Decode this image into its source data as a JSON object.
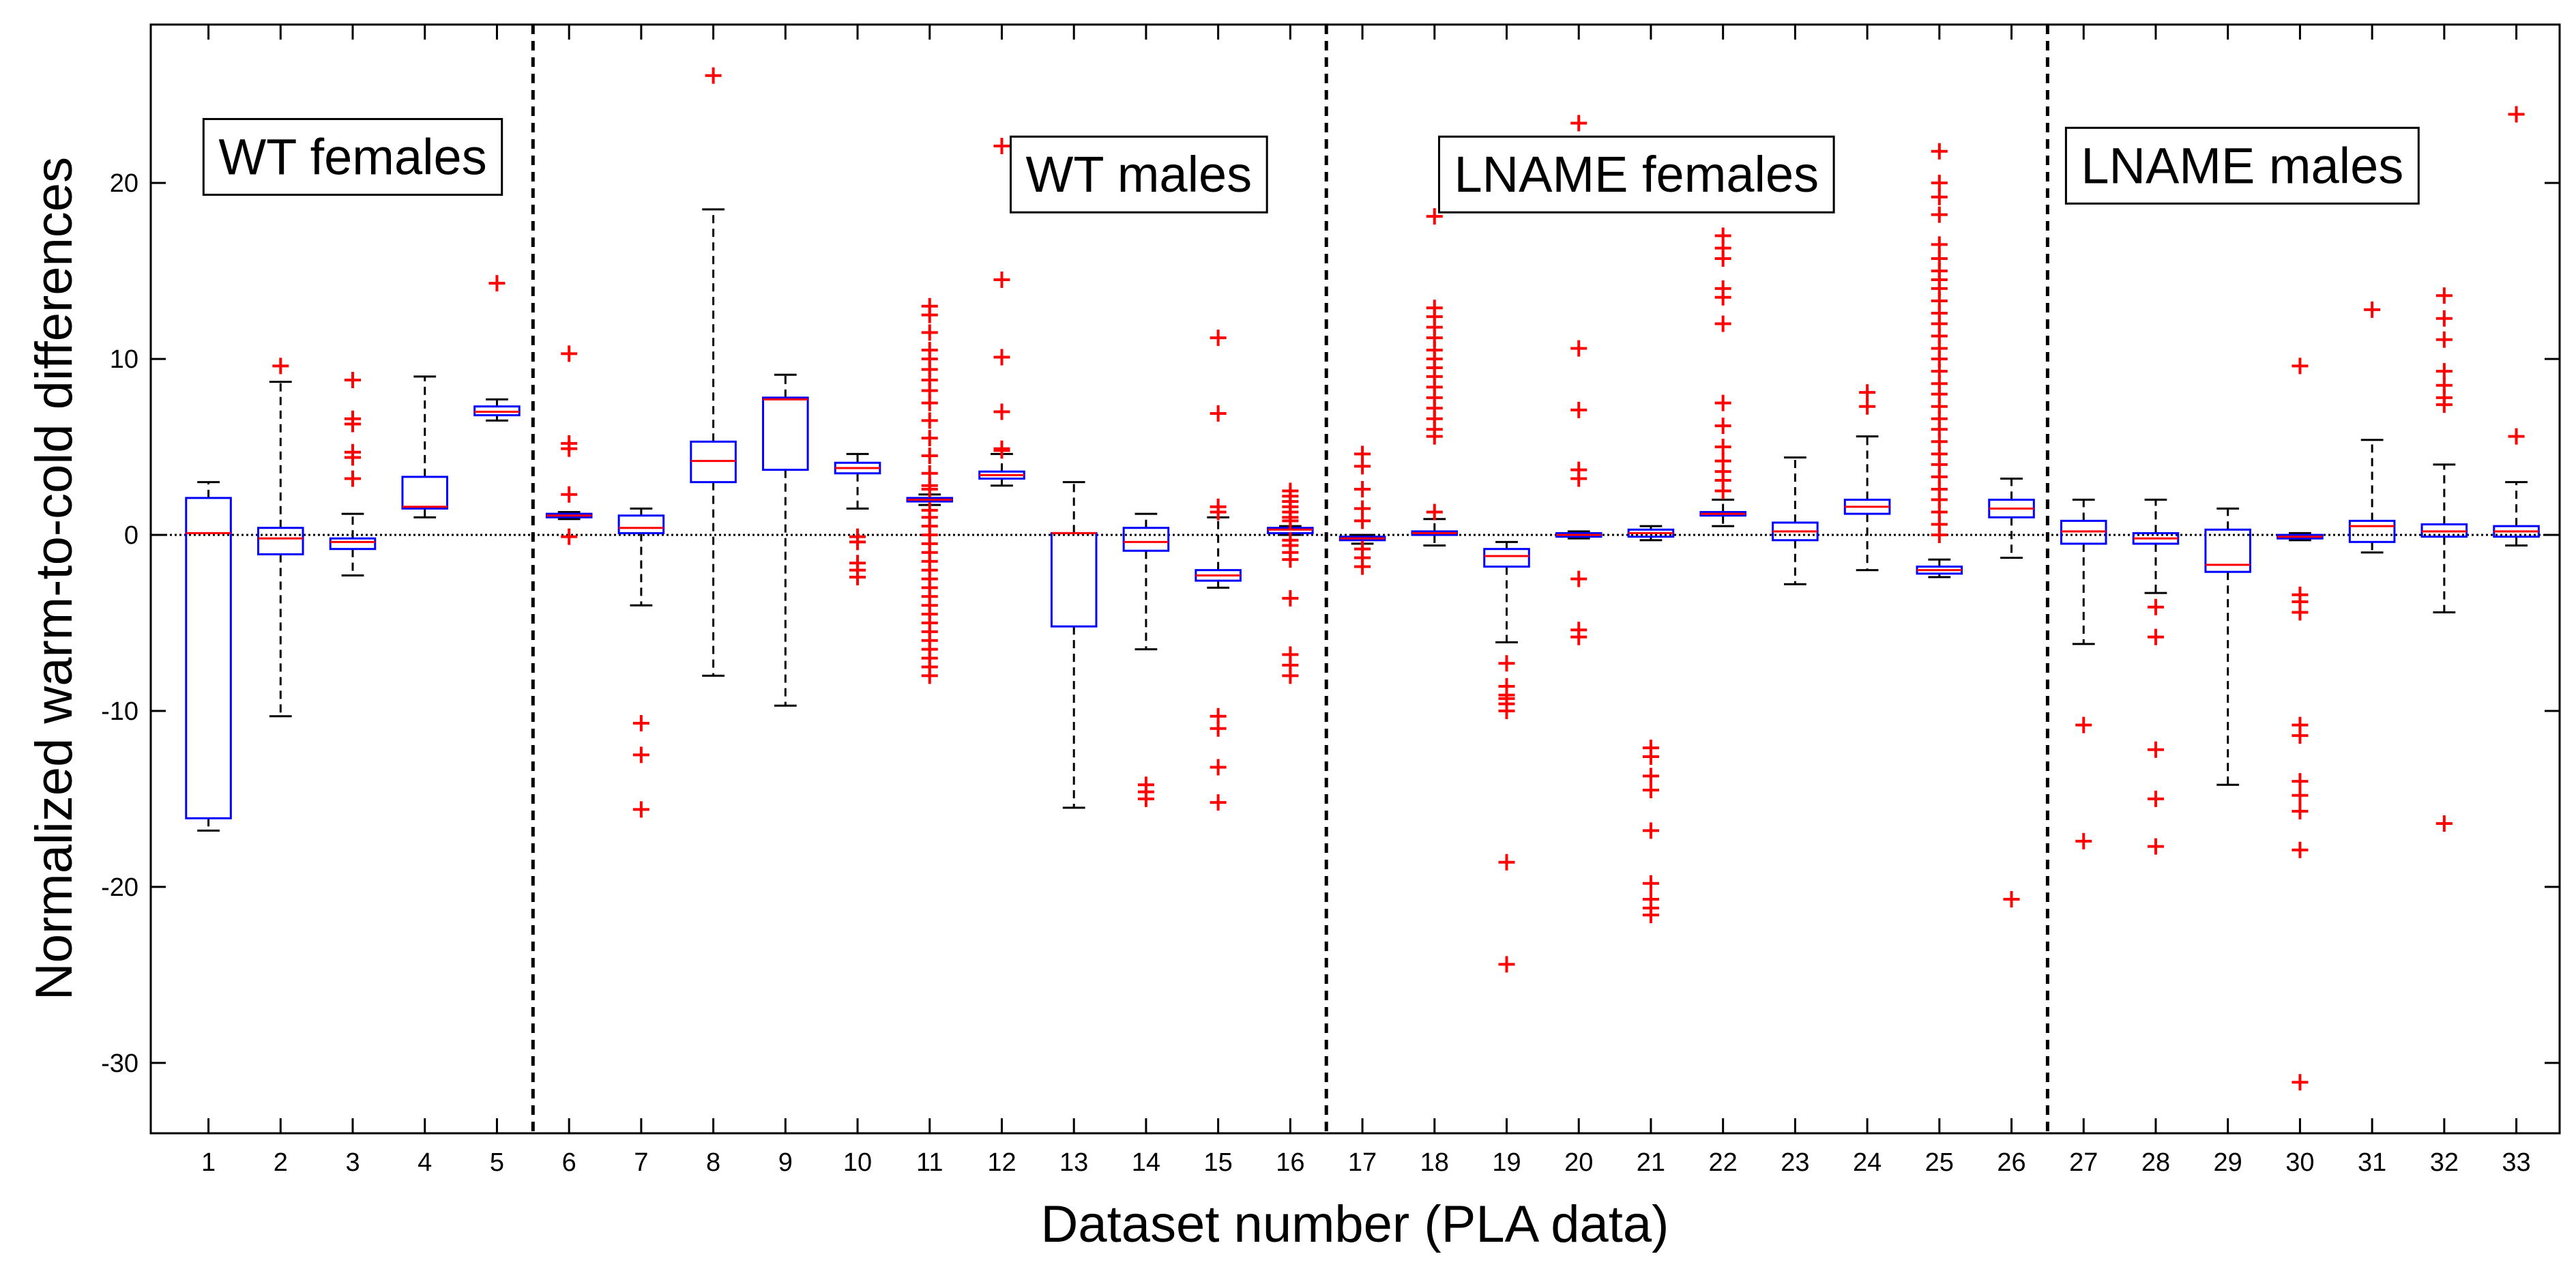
{
  "chart_data": {
    "type": "box",
    "xlabel": "Dataset number (PLA data)",
    "ylabel": "Normalized warm-to-cold differences",
    "ylim": [
      -34,
      29
    ],
    "yticks": [
      -30,
      -20,
      -10,
      0,
      10,
      20
    ],
    "xlim": [
      0.2,
      33.6
    ],
    "categories": [
      "1",
      "2",
      "3",
      "4",
      "5",
      "6",
      "7",
      "8",
      "9",
      "10",
      "11",
      "12",
      "13",
      "14",
      "15",
      "16",
      "17",
      "18",
      "19",
      "20",
      "21",
      "22",
      "23",
      "24",
      "25",
      "26",
      "27",
      "28",
      "29",
      "30",
      "31",
      "32",
      "33"
    ],
    "reference_line_y": 0,
    "group_dividers_x": [
      5.5,
      16.5,
      26.5
    ],
    "groups": [
      {
        "label": "WT females",
        "center_x": 3.0,
        "y": 21.5
      },
      {
        "label": "WT males",
        "center_x": 13.9,
        "y": 20.5
      },
      {
        "label": "LNAME females",
        "center_x": 20.8,
        "y": 20.5
      },
      {
        "label": "LNAME males",
        "center_x": 29.2,
        "y": 21.0
      }
    ],
    "colors": {
      "box": "#0000ff",
      "median": "#ff0000",
      "whisker": "#000000",
      "outlier": "#ff0000"
    },
    "boxes": [
      {
        "dataset": 1,
        "q1": -16.1,
        "median": 0.1,
        "q3": 2.1,
        "whisker_low": -16.8,
        "whisker_high": 3.0,
        "outliers": []
      },
      {
        "dataset": 2,
        "q1": -1.1,
        "median": -0.2,
        "q3": 0.4,
        "whisker_low": -10.3,
        "whisker_high": 8.7,
        "outliers": [
          9.6
        ]
      },
      {
        "dataset": 3,
        "q1": -0.8,
        "median": -0.4,
        "q3": -0.2,
        "whisker_low": -2.3,
        "whisker_high": 1.2,
        "outliers": [
          3.2,
          4.4,
          4.7,
          6.3,
          6.6,
          8.8
        ]
      },
      {
        "dataset": 4,
        "q1": 1.5,
        "median": 1.6,
        "q3": 3.3,
        "whisker_low": 1.0,
        "whisker_high": 9.0,
        "outliers": []
      },
      {
        "dataset": 5,
        "q1": 6.8,
        "median": 7.0,
        "q3": 7.3,
        "whisker_low": 6.5,
        "whisker_high": 7.7,
        "outliers": [
          14.3
        ]
      },
      {
        "dataset": 6,
        "q1": 1.0,
        "median": 1.1,
        "q3": 1.2,
        "whisker_low": 0.9,
        "whisker_high": 1.3,
        "outliers": [
          -0.1,
          2.3,
          4.9,
          5.2,
          10.3
        ]
      },
      {
        "dataset": 7,
        "q1": 0.1,
        "median": 0.4,
        "q3": 1.1,
        "whisker_low": -4.0,
        "whisker_high": 1.5,
        "outliers": [
          -10.7,
          -12.5,
          -15.6
        ]
      },
      {
        "dataset": 8,
        "q1": 3.0,
        "median": 4.2,
        "q3": 5.3,
        "whisker_low": -8.0,
        "whisker_high": 18.5,
        "outliers": [
          26.1
        ]
      },
      {
        "dataset": 9,
        "q1": 3.7,
        "median": 7.7,
        "q3": 7.8,
        "whisker_low": -9.7,
        "whisker_high": 9.1,
        "outliers": []
      },
      {
        "dataset": 10,
        "q1": 3.5,
        "median": 3.8,
        "q3": 4.1,
        "whisker_low": 1.5,
        "whisker_high": 4.6,
        "outliers": [
          -0.1,
          -0.4,
          -1.6,
          -2.0,
          -2.4
        ]
      },
      {
        "dataset": 11,
        "q1": 1.9,
        "median": 2.0,
        "q3": 2.1,
        "whisker_low": 1.7,
        "whisker_high": 2.3,
        "outliers": [
          13.0,
          12.5,
          11.5,
          10.5,
          10.0,
          9.4,
          8.8,
          8.2,
          7.5,
          6.5,
          5.5,
          4.5,
          3.5,
          2.8,
          2.6,
          1.4,
          1.0,
          0.5,
          0.0,
          -0.5,
          -1.0,
          -1.5,
          -2.0,
          -2.5,
          -3.0,
          -3.5,
          -4.0,
          -4.5,
          -5.0,
          -5.5,
          -6.0,
          -6.5,
          -7.0,
          -7.5,
          -8.0
        ]
      },
      {
        "dataset": 12,
        "q1": 3.2,
        "median": 3.4,
        "q3": 3.6,
        "whisker_low": 2.8,
        "whisker_high": 4.6,
        "outliers": [
          4.8,
          4.9,
          7.0,
          10.1,
          14.5,
          22.1
        ]
      },
      {
        "dataset": 13,
        "q1": -5.2,
        "median": 0.1,
        "q3": 0.1,
        "whisker_low": -15.5,
        "whisker_high": 3.0,
        "outliers": []
      },
      {
        "dataset": 14,
        "q1": -0.9,
        "median": -0.4,
        "q3": 0.4,
        "whisker_low": -6.5,
        "whisker_high": 1.2,
        "outliers": [
          -14.2,
          -14.6,
          -15.0
        ]
      },
      {
        "dataset": 15,
        "q1": -2.6,
        "median": -2.3,
        "q3": -2.0,
        "whisker_low": -3.0,
        "whisker_high": 1.0,
        "outliers": [
          11.2,
          6.9,
          1.6,
          1.3,
          -10.3,
          -11.0,
          -13.2,
          -15.2
        ]
      },
      {
        "dataset": 16,
        "q1": 0.1,
        "median": 0.3,
        "q3": 0.4,
        "whisker_low": 0.0,
        "whisker_high": 0.5,
        "outliers": [
          2.5,
          2.2,
          1.9,
          1.6,
          1.3,
          1.0,
          0.8,
          -0.3,
          -0.6,
          -1.0,
          -1.4,
          -3.6,
          -6.8,
          -7.4,
          -8.0
        ]
      },
      {
        "dataset": 17,
        "q1": -0.3,
        "median": -0.2,
        "q3": -0.1,
        "whisker_low": -0.5,
        "whisker_high": 0.0,
        "outliers": [
          4.6,
          3.9,
          2.6,
          1.5,
          0.8,
          -0.8,
          -1.3,
          -1.8
        ]
      },
      {
        "dataset": 18,
        "q1": 0.0,
        "median": 0.1,
        "q3": 0.2,
        "whisker_low": -0.6,
        "whisker_high": 0.9,
        "outliers": [
          18.1,
          12.9,
          12.4,
          11.8,
          11.2,
          10.5,
          10.0,
          9.5,
          9.0,
          8.4,
          7.8,
          7.2,
          6.6,
          6.0,
          5.6,
          1.3
        ]
      },
      {
        "dataset": 19,
        "q1": -1.8,
        "median": -1.2,
        "q3": -0.8,
        "whisker_low": -6.1,
        "whisker_high": -0.4,
        "outliers": [
          -7.3,
          -8.6,
          -9.1,
          -9.3,
          -9.6,
          -10.0,
          -18.6,
          -24.4
        ]
      },
      {
        "dataset": 20,
        "q1": -0.1,
        "median": 0.0,
        "q3": 0.1,
        "whisker_low": -0.2,
        "whisker_high": 0.2,
        "outliers": [
          23.4,
          10.6,
          7.1,
          3.7,
          3.2,
          -2.5,
          -5.4,
          -5.8
        ]
      },
      {
        "dataset": 21,
        "q1": -0.1,
        "median": 0.1,
        "q3": 0.3,
        "whisker_low": -0.3,
        "whisker_high": 0.5,
        "outliers": [
          -12.1,
          -12.6,
          -13.7,
          -14.5,
          -16.8,
          -19.8,
          -20.7,
          -21.2,
          -21.6
        ]
      },
      {
        "dataset": 22,
        "q1": 1.1,
        "median": 1.2,
        "q3": 1.3,
        "whisker_low": 0.5,
        "whisker_high": 2.0,
        "outliers": [
          17.0,
          16.3,
          15.7,
          14.0,
          13.5,
          12.0,
          7.5,
          6.2,
          5.0,
          4.2,
          3.6,
          3.1,
          2.5
        ]
      },
      {
        "dataset": 23,
        "q1": -0.3,
        "median": 0.2,
        "q3": 0.7,
        "whisker_low": -2.8,
        "whisker_high": 4.4,
        "outliers": []
      },
      {
        "dataset": 24,
        "q1": 1.2,
        "median": 1.6,
        "q3": 2.0,
        "whisker_low": -2.0,
        "whisker_high": 5.6,
        "outliers": [
          8.1,
          7.3
        ]
      },
      {
        "dataset": 25,
        "q1": -2.2,
        "median": -2.0,
        "q3": -1.8,
        "whisker_low": -2.4,
        "whisker_high": -1.4,
        "outliers": [
          21.8,
          20.0,
          19.2,
          18.2,
          16.5,
          15.7,
          15.0,
          14.5,
          14.0,
          13.3,
          12.6,
          12.0,
          11.3,
          10.6,
          10.0,
          9.3,
          8.6,
          8.0,
          7.3,
          6.6,
          6.0,
          5.3,
          4.6,
          4.0,
          3.3,
          2.6,
          2.0,
          1.3,
          0.6,
          0.0
        ]
      },
      {
        "dataset": 26,
        "q1": 1.0,
        "median": 1.5,
        "q3": 2.0,
        "whisker_low": -1.3,
        "whisker_high": 3.2,
        "outliers": [
          -20.7
        ]
      },
      {
        "dataset": 27,
        "q1": -0.5,
        "median": 0.2,
        "q3": 0.8,
        "whisker_low": -6.2,
        "whisker_high": 2.0,
        "outliers": [
          -10.8,
          -17.4
        ]
      },
      {
        "dataset": 28,
        "q1": -0.5,
        "median": -0.2,
        "q3": 0.1,
        "whisker_low": -3.3,
        "whisker_high": 2.0,
        "outliers": [
          -4.1,
          -5.8,
          -12.2,
          -15.0,
          -17.7
        ]
      },
      {
        "dataset": 29,
        "q1": -2.1,
        "median": -1.7,
        "q3": 0.3,
        "whisker_low": -14.2,
        "whisker_high": 1.5,
        "outliers": []
      },
      {
        "dataset": 30,
        "q1": -0.2,
        "median": -0.1,
        "q3": 0.0,
        "whisker_low": -0.3,
        "whisker_high": 0.1,
        "outliers": [
          9.6,
          -3.4,
          -3.8,
          -4.4,
          -10.8,
          -11.4,
          -14.0,
          -14.8,
          -15.7,
          -17.9,
          -31.1
        ]
      },
      {
        "dataset": 31,
        "q1": -0.4,
        "median": 0.5,
        "q3": 0.8,
        "whisker_low": -1.0,
        "whisker_high": 5.4,
        "outliers": [
          12.8
        ]
      },
      {
        "dataset": 32,
        "q1": -0.1,
        "median": 0.2,
        "q3": 0.6,
        "whisker_low": -4.4,
        "whisker_high": 4.0,
        "outliers": [
          13.6,
          12.3,
          11.1,
          9.3,
          8.5,
          7.8,
          7.4,
          -16.4
        ]
      },
      {
        "dataset": 33,
        "q1": -0.1,
        "median": 0.2,
        "q3": 0.5,
        "whisker_low": -0.6,
        "whisker_high": 3.0,
        "outliers": [
          23.9,
          5.6
        ]
      }
    ]
  }
}
